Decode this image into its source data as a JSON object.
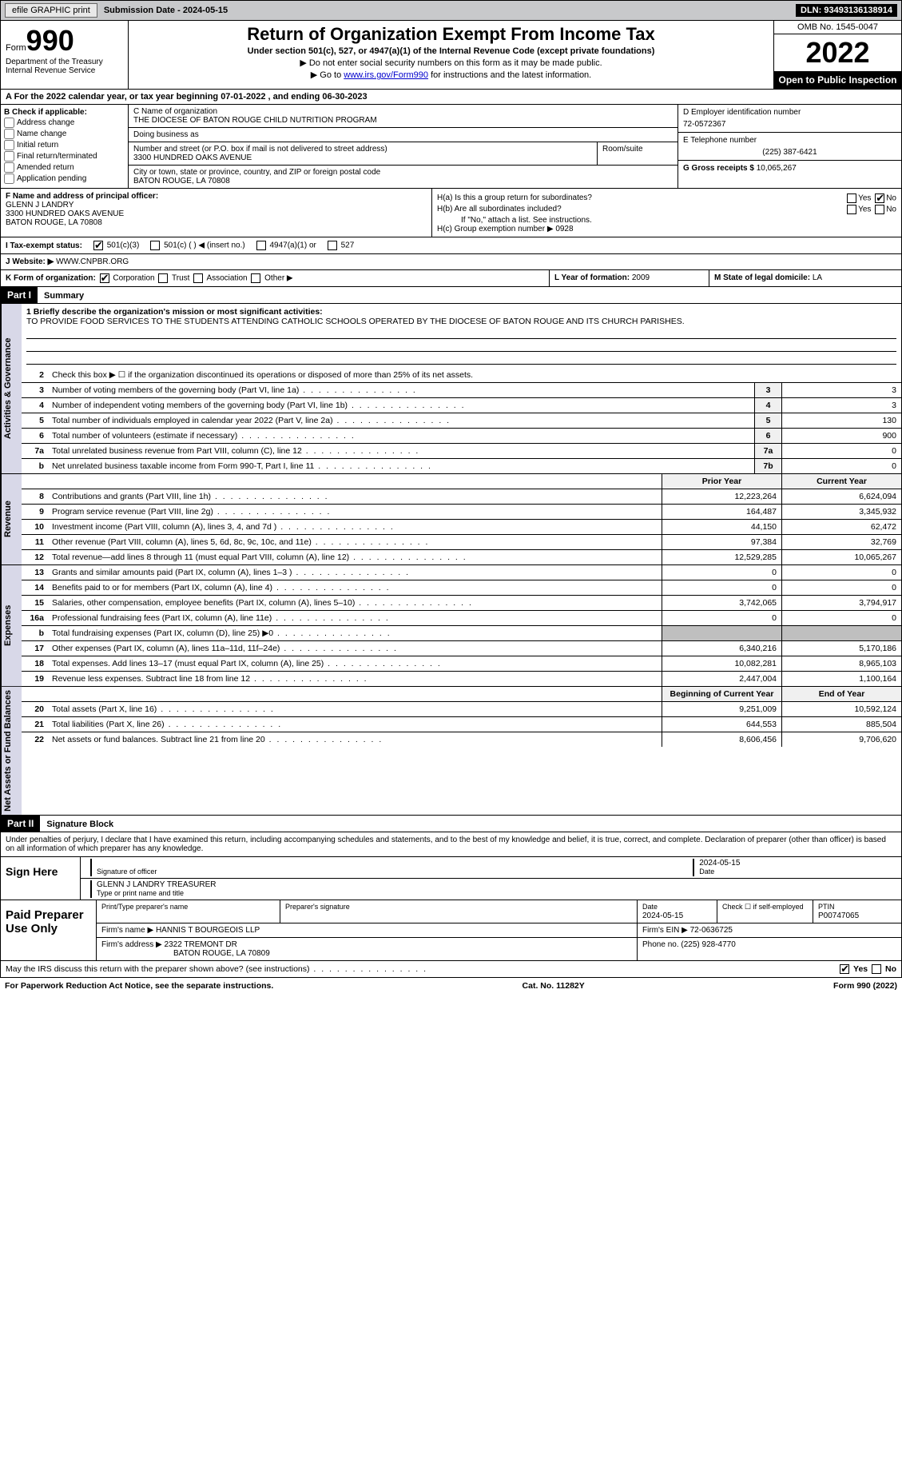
{
  "topbar": {
    "efile": "efile GRAPHIC print",
    "submission": "Submission Date - 2024-05-15",
    "dln": "DLN: 93493136138914"
  },
  "header": {
    "form_word": "Form",
    "form_num": "990",
    "dept": "Department of the Treasury Internal Revenue Service",
    "title": "Return of Organization Exempt From Income Tax",
    "sub1": "Under section 501(c), 527, or 4947(a)(1) of the Internal Revenue Code (except private foundations)",
    "sub2": "▶ Do not enter social security numbers on this form as it may be made public.",
    "sub3_pre": "▶ Go to ",
    "sub3_link": "www.irs.gov/Form990",
    "sub3_post": " for instructions and the latest information.",
    "omb": "OMB No. 1545-0047",
    "year": "2022",
    "inspect": "Open to Public Inspection"
  },
  "row_a": "A For the 2022 calendar year, or tax year beginning 07-01-2022   , and ending 06-30-2023",
  "section_b": {
    "label": "B Check if applicable:",
    "items": [
      "Address change",
      "Name change",
      "Initial return",
      "Final return/terminated",
      "Amended return",
      "Application pending"
    ]
  },
  "section_c": {
    "name_label": "C Name of organization",
    "name": "THE DIOCESE OF BATON ROUGE CHILD NUTRITION PROGRAM",
    "dba_label": "Doing business as",
    "dba": "",
    "addr_label": "Number and street (or P.O. box if mail is not delivered to street address)",
    "addr": "3300 HUNDRED OAKS AVENUE",
    "room_label": "Room/suite",
    "city_label": "City or town, state or province, country, and ZIP or foreign postal code",
    "city": "BATON ROUGE, LA  70808"
  },
  "section_d": {
    "label": "D Employer identification number",
    "value": "72-0572367"
  },
  "section_e": {
    "label": "E Telephone number",
    "value": "(225) 387-6421"
  },
  "section_g": {
    "label": "G Gross receipts $",
    "value": "10,065,267"
  },
  "section_f": {
    "label": "F  Name and address of principal officer:",
    "name": "GLENN J LANDRY",
    "addr1": "3300 HUNDRED OAKS AVENUE",
    "addr2": "BATON ROUGE, LA  70808"
  },
  "section_h": {
    "a_label": "H(a)  Is this a group return for subordinates?",
    "a_no_checked": true,
    "b_label": "H(b)  Are all subordinates included?",
    "b_note": "If \"No,\" attach a list. See instructions.",
    "c_label": "H(c)  Group exemption number ▶",
    "c_value": "0928"
  },
  "status": {
    "label": "I   Tax-exempt status:",
    "c3": "501(c)(3)",
    "c": "501(c) (  ) ◀ (insert no.)",
    "a1": "4947(a)(1) or",
    "s527": "527"
  },
  "website": {
    "label": "J   Website: ▶",
    "value": "WWW.CNPBR.ORG"
  },
  "section_k": {
    "label": "K Form of organization:",
    "opts": [
      "Corporation",
      "Trust",
      "Association",
      "Other ▶"
    ],
    "l_label": "L Year of formation:",
    "l_value": "2009",
    "m_label": "M State of legal domicile:",
    "m_value": "LA"
  },
  "part1": {
    "tag": "Part I",
    "title": "Summary"
  },
  "mission": {
    "label": "1   Briefly describe the organization's mission or most significant activities:",
    "text": "TO PROVIDE FOOD SERVICES TO THE STUDENTS ATTENDING CATHOLIC SCHOOLS OPERATED BY THE DIOCESE OF BATON ROUGE AND ITS CHURCH PARISHES."
  },
  "line2": "Check this box ▶ ☐ if the organization discontinued its operations or disposed of more than 25% of its net assets.",
  "governance_rows": [
    {
      "n": "3",
      "d": "Number of voting members of the governing body (Part VI, line 1a)",
      "box": "3",
      "v": "3"
    },
    {
      "n": "4",
      "d": "Number of independent voting members of the governing body (Part VI, line 1b)",
      "box": "4",
      "v": "3"
    },
    {
      "n": "5",
      "d": "Total number of individuals employed in calendar year 2022 (Part V, line 2a)",
      "box": "5",
      "v": "130"
    },
    {
      "n": "6",
      "d": "Total number of volunteers (estimate if necessary)",
      "box": "6",
      "v": "900"
    },
    {
      "n": "7a",
      "d": "Total unrelated business revenue from Part VIII, column (C), line 12",
      "box": "7a",
      "v": "0"
    },
    {
      "n": "b",
      "d": "Net unrelated business taxable income from Form 990-T, Part I, line 11",
      "box": "7b",
      "v": "0"
    }
  ],
  "col_hdrs": {
    "prior": "Prior Year",
    "current": "Current Year",
    "begin": "Beginning of Current Year",
    "end": "End of Year"
  },
  "revenue_rows": [
    {
      "n": "8",
      "d": "Contributions and grants (Part VIII, line 1h)",
      "p": "12,223,264",
      "c": "6,624,094"
    },
    {
      "n": "9",
      "d": "Program service revenue (Part VIII, line 2g)",
      "p": "164,487",
      "c": "3,345,932"
    },
    {
      "n": "10",
      "d": "Investment income (Part VIII, column (A), lines 3, 4, and 7d )",
      "p": "44,150",
      "c": "62,472"
    },
    {
      "n": "11",
      "d": "Other revenue (Part VIII, column (A), lines 5, 6d, 8c, 9c, 10c, and 11e)",
      "p": "97,384",
      "c": "32,769"
    },
    {
      "n": "12",
      "d": "Total revenue—add lines 8 through 11 (must equal Part VIII, column (A), line 12)",
      "p": "12,529,285",
      "c": "10,065,267"
    }
  ],
  "expense_rows": [
    {
      "n": "13",
      "d": "Grants and similar amounts paid (Part IX, column (A), lines 1–3 )",
      "p": "0",
      "c": "0"
    },
    {
      "n": "14",
      "d": "Benefits paid to or for members (Part IX, column (A), line 4)",
      "p": "0",
      "c": "0"
    },
    {
      "n": "15",
      "d": "Salaries, other compensation, employee benefits (Part IX, column (A), lines 5–10)",
      "p": "3,742,065",
      "c": "3,794,917"
    },
    {
      "n": "16a",
      "d": "Professional fundraising fees (Part IX, column (A), line 11e)",
      "p": "0",
      "c": "0"
    },
    {
      "n": "b",
      "d": "Total fundraising expenses (Part IX, column (D), line 25) ▶0",
      "p": "",
      "c": "",
      "grey": true
    },
    {
      "n": "17",
      "d": "Other expenses (Part IX, column (A), lines 11a–11d, 11f–24e)",
      "p": "6,340,216",
      "c": "5,170,186"
    },
    {
      "n": "18",
      "d": "Total expenses. Add lines 13–17 (must equal Part IX, column (A), line 25)",
      "p": "10,082,281",
      "c": "8,965,103"
    },
    {
      "n": "19",
      "d": "Revenue less expenses. Subtract line 18 from line 12",
      "p": "2,447,004",
      "c": "1,100,164"
    }
  ],
  "net_rows": [
    {
      "n": "20",
      "d": "Total assets (Part X, line 16)",
      "p": "9,251,009",
      "c": "10,592,124"
    },
    {
      "n": "21",
      "d": "Total liabilities (Part X, line 26)",
      "p": "644,553",
      "c": "885,504"
    },
    {
      "n": "22",
      "d": "Net assets or fund balances. Subtract line 21 from line 20",
      "p": "8,606,456",
      "c": "9,706,620"
    }
  ],
  "vtabs": {
    "gov": "Activities & Governance",
    "rev": "Revenue",
    "exp": "Expenses",
    "net": "Net Assets or Fund Balances"
  },
  "part2": {
    "tag": "Part II",
    "title": "Signature Block"
  },
  "sig_decl": "Under penalties of perjury, I declare that I have examined this return, including accompanying schedules and statements, and to the best of my knowledge and belief, it is true, correct, and complete. Declaration of preparer (other than officer) is based on all information of which preparer has any knowledge.",
  "sign_here": "Sign Here",
  "sig_officer_label": "Signature of officer",
  "sig_date": "2024-05-15",
  "sig_name": "GLENN J LANDRY  TREASURER",
  "sig_name_label": "Type or print name and title",
  "sig_date_label": "Date",
  "prep_label": "Paid Preparer Use Only",
  "prep": {
    "name_label": "Print/Type preparer's name",
    "sig_label": "Preparer's signature",
    "date_label": "Date",
    "date": "2024-05-15",
    "check_label": "Check ☐ if self-employed",
    "ptin_label": "PTIN",
    "ptin": "P00747065",
    "firm_name_label": "Firm's name   ▶",
    "firm_name": "HANNIS T BOURGEOIS LLP",
    "firm_ein_label": "Firm's EIN ▶",
    "firm_ein": "72-0636725",
    "firm_addr_label": "Firm's address ▶",
    "firm_addr1": "2322 TREMONT DR",
    "firm_addr2": "BATON ROUGE, LA  70809",
    "phone_label": "Phone no.",
    "phone": "(225) 928-4770"
  },
  "footer_q": "May the IRS discuss this return with the preparer shown above? (see instructions)",
  "footer_yes_checked": true,
  "footer": {
    "l": "For Paperwork Reduction Act Notice, see the separate instructions.",
    "m": "Cat. No. 11282Y",
    "r": "Form 990 (2022)"
  },
  "yes": "Yes",
  "no": "No"
}
